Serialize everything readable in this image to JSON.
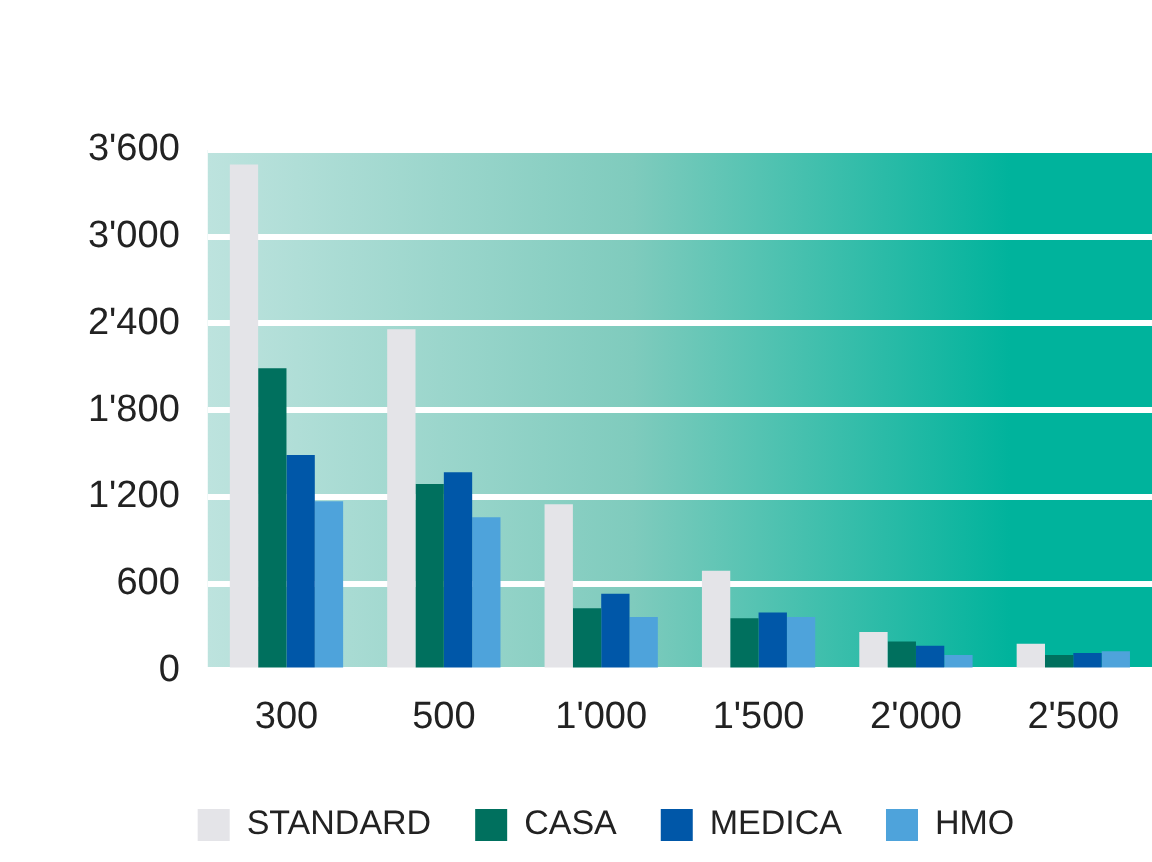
{
  "chart_data": {
    "type": "bar",
    "categories": [
      "300",
      "500",
      "1'000",
      "1'500",
      "2'000",
      "2'500"
    ],
    "series": [
      {
        "name": "STANDARD",
        "color": "#e4e4e8",
        "values": [
          3500,
          2360,
          1150,
          690,
          265,
          185
        ]
      },
      {
        "name": "CASA",
        "color": "#00705e",
        "values": [
          2090,
          1290,
          430,
          360,
          200,
          106
        ]
      },
      {
        "name": "MEDICA",
        "color": "#0057a8",
        "values": [
          1490,
          1370,
          530,
          400,
          170,
          120
        ]
      },
      {
        "name": "HMO",
        "color": "#4ea3db",
        "values": [
          1170,
          1060,
          370,
          370,
          106,
          132
        ]
      }
    ],
    "ylim": [
      0,
      3600
    ],
    "yticks": [
      0,
      600,
      {
        "value": 1200,
        "label": "1'200"
      },
      {
        "value": 1800,
        "label": "1'800"
      },
      {
        "value": 2400,
        "label": "2'400"
      },
      {
        "value": 3000,
        "label": "3'000"
      },
      {
        "value": 3600,
        "label": "3'600"
      }
    ],
    "grid": "y",
    "legend": "bottom"
  }
}
